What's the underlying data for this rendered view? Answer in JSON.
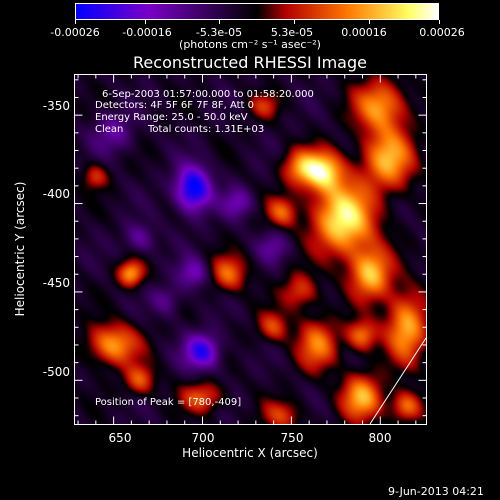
{
  "chart_data": {
    "type": "heatmap",
    "title": "Reconstructed RHESSI Image",
    "xlabel": "Heliocentric X (arcsec)",
    "ylabel": "Heliocentric Y (arcsec)",
    "xlim": [
      628,
      826
    ],
    "ylim": [
      -525,
      -327
    ],
    "x_ticks": [
      "650",
      "700",
      "750",
      "800"
    ],
    "y_ticks": [
      "-350",
      "-400",
      "-450",
      "-500"
    ],
    "colorbar": {
      "range": [
        -0.00026,
        0.00026
      ],
      "tick_labels": [
        "-0.00026",
        "-0.00016",
        "-5.3e-05",
        "5.3e-05",
        "0.00016",
        "0.00026"
      ],
      "unit_label": "(photons cm⁻² s⁻¹ asec⁻²)",
      "colors": [
        "#0000ff",
        "#7a00c8",
        "#000000",
        "#b40000",
        "#ff7800",
        "#ffff64",
        "#ffffff"
      ]
    },
    "annotations": {
      "time_range": "6-Sep-2003 01:57:00.000 to 01:58:20.000",
      "detectors": "Detectors: 4F 5F 6F 7F 8F, Att 0",
      "energy_range": "Energy Range: 25.0 - 50.0 keV",
      "method": "Clean",
      "total_counts": "Total counts: 1.31E+03",
      "peak_position": "Position of Peak = [780,-409]"
    },
    "sources": [
      {
        "x": 780,
        "y": -409,
        "amp": 1.0,
        "sx": 12,
        "sy": 14
      },
      {
        "x": 768,
        "y": -382,
        "amp": 0.9,
        "sx": 8,
        "sy": 8
      },
      {
        "x": 805,
        "y": -375,
        "amp": 0.75,
        "sx": 10,
        "sy": 12
      },
      {
        "x": 800,
        "y": -345,
        "amp": 0.7,
        "sx": 10,
        "sy": 10
      },
      {
        "x": 755,
        "y": -380,
        "amp": 0.55,
        "sx": 7,
        "sy": 7
      },
      {
        "x": 745,
        "y": -405,
        "amp": 0.5,
        "sx": 6,
        "sy": 6
      },
      {
        "x": 795,
        "y": -440,
        "amp": 0.8,
        "sx": 8,
        "sy": 10
      },
      {
        "x": 815,
        "y": -470,
        "amp": 0.75,
        "sx": 8,
        "sy": 14
      },
      {
        "x": 790,
        "y": -475,
        "amp": 0.6,
        "sx": 6,
        "sy": 6
      },
      {
        "x": 790,
        "y": -510,
        "amp": 0.75,
        "sx": 8,
        "sy": 9
      },
      {
        "x": 815,
        "y": -515,
        "amp": 0.6,
        "sx": 6,
        "sy": 6
      },
      {
        "x": 765,
        "y": -480,
        "amp": 0.6,
        "sx": 8,
        "sy": 10
      },
      {
        "x": 740,
        "y": -470,
        "amp": 0.45,
        "sx": 6,
        "sy": 6
      },
      {
        "x": 745,
        "y": -520,
        "amp": 0.4,
        "sx": 8,
        "sy": 6
      },
      {
        "x": 755,
        "y": -450,
        "amp": 0.45,
        "sx": 7,
        "sy": 7
      },
      {
        "x": 660,
        "y": -440,
        "amp": 0.7,
        "sx": 5,
        "sy": 5
      },
      {
        "x": 650,
        "y": -480,
        "amp": 0.7,
        "sx": 10,
        "sy": 8
      },
      {
        "x": 665,
        "y": -500,
        "amp": 0.5,
        "sx": 6,
        "sy": 6
      },
      {
        "x": 700,
        "y": -510,
        "amp": 0.5,
        "sx": 8,
        "sy": 6
      },
      {
        "x": 715,
        "y": -440,
        "amp": 0.55,
        "sx": 7,
        "sy": 7
      },
      {
        "x": 640,
        "y": -385,
        "amp": 0.4,
        "sx": 5,
        "sy": 5
      },
      {
        "x": 735,
        "y": -345,
        "amp": 0.35,
        "sx": 6,
        "sy": 5
      },
      {
        "x": 695,
        "y": -392,
        "amp": -0.95,
        "sx": 7,
        "sy": 9
      },
      {
        "x": 700,
        "y": -484,
        "amp": -0.75,
        "sx": 7,
        "sy": 7
      },
      {
        "x": 695,
        "y": -440,
        "amp": -0.45,
        "sx": 6,
        "sy": 6
      },
      {
        "x": 720,
        "y": -400,
        "amp": -0.4,
        "sx": 6,
        "sy": 6
      },
      {
        "x": 650,
        "y": -360,
        "amp": -0.35,
        "sx": 8,
        "sy": 8
      },
      {
        "x": 665,
        "y": -420,
        "amp": -0.35,
        "sx": 6,
        "sy": 6
      },
      {
        "x": 740,
        "y": -425,
        "amp": -0.3,
        "sx": 6,
        "sy": 6
      },
      {
        "x": 680,
        "y": -455,
        "amp": -0.3,
        "sx": 6,
        "sy": 6
      }
    ]
  },
  "footer": {
    "date": "9-Jun-2013 04:21"
  }
}
